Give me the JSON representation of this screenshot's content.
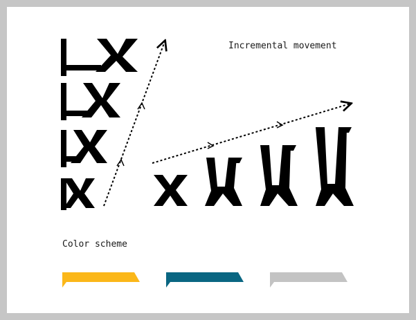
{
  "labels": {
    "incremental_movement": "Incremental movement",
    "color_scheme": "Color scheme"
  },
  "colors": {
    "glyph": "#000000",
    "border": "#c6c6c6",
    "background": "#ffffff",
    "swatches": [
      "#fbb719",
      "#0a6682",
      "#c3c3c3"
    ]
  },
  "swatch_names": [
    "yellow",
    "teal",
    "gray"
  ]
}
